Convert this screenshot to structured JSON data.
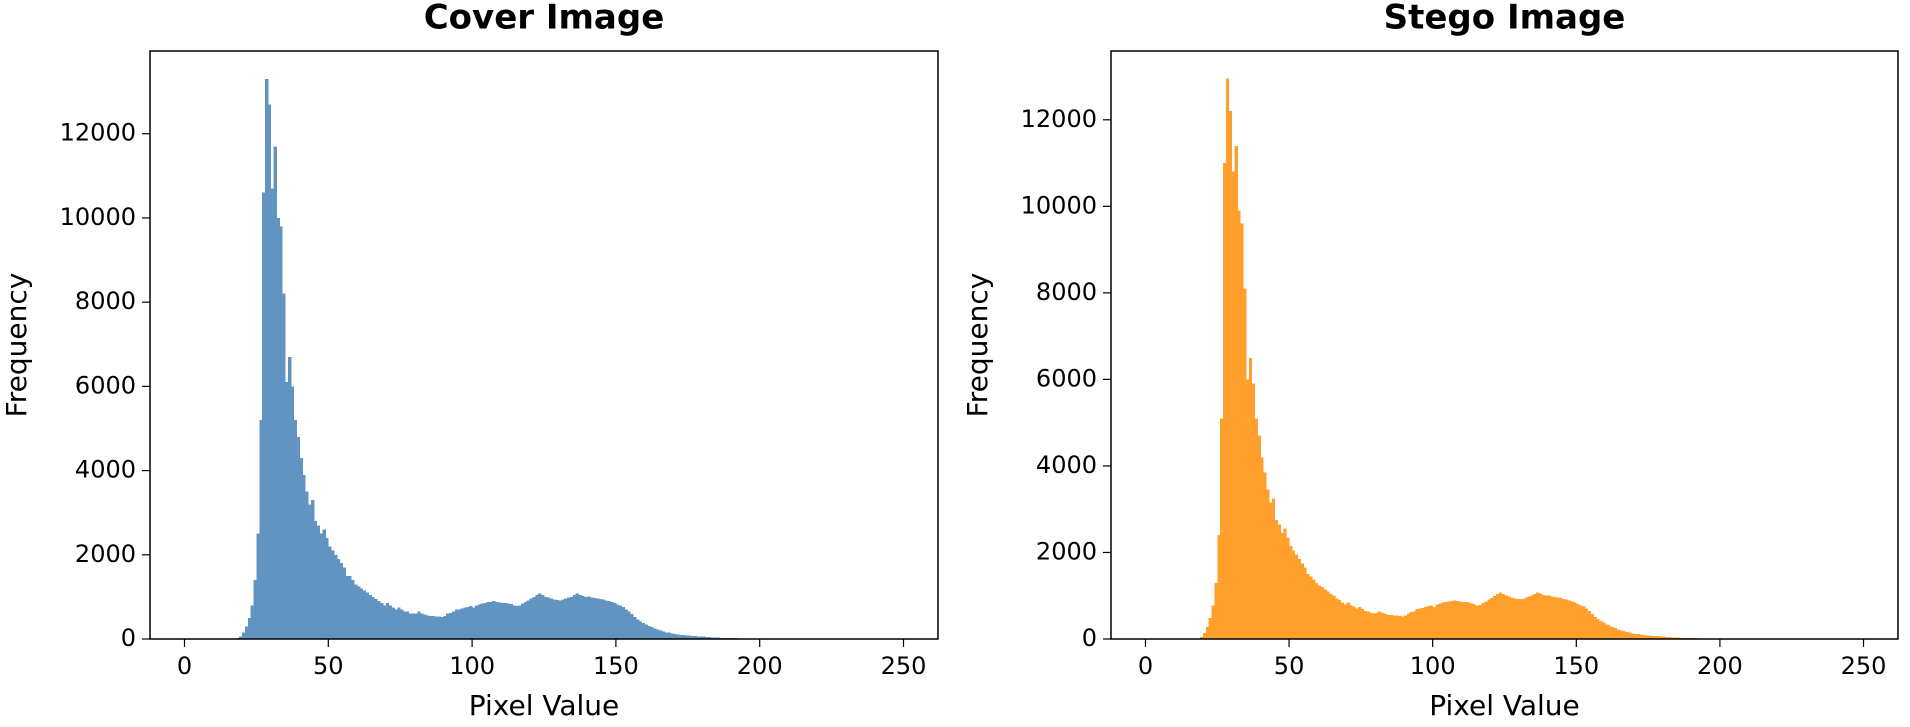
{
  "chart_data": [
    {
      "type": "histogram",
      "title": "Cover Image",
      "xlabel": "Pixel Value",
      "ylabel": "Frequency",
      "color": "#6194c0",
      "xlim": [
        -12,
        262
      ],
      "ylim": [
        0,
        13965
      ],
      "xticks": [
        0,
        50,
        100,
        150,
        200,
        250
      ],
      "yticks": [
        0,
        2000,
        4000,
        6000,
        8000,
        10000,
        12000
      ],
      "bins": [
        0,
        1,
        2,
        3,
        4,
        5,
        6,
        7,
        8,
        9,
        10,
        11,
        12,
        13,
        14,
        15,
        16,
        17,
        18,
        19,
        20,
        21,
        22,
        23,
        24,
        25,
        26,
        27,
        28,
        29,
        30,
        31,
        32,
        33,
        34,
        35,
        36,
        37,
        38,
        39,
        40,
        41,
        42,
        43,
        44,
        45,
        46,
        47,
        48,
        49,
        50,
        51,
        52,
        53,
        54,
        55,
        56,
        57,
        58,
        59,
        60,
        61,
        62,
        63,
        64,
        65,
        66,
        67,
        68,
        69,
        70,
        71,
        72,
        73,
        74,
        75,
        76,
        77,
        78,
        79,
        80,
        81,
        82,
        83,
        84,
        85,
        86,
        87,
        88,
        89,
        90,
        91,
        92,
        93,
        94,
        95,
        96,
        97,
        98,
        99,
        100,
        101,
        102,
        103,
        104,
        105,
        106,
        107,
        108,
        109,
        110,
        111,
        112,
        113,
        114,
        115,
        116,
        117,
        118,
        119,
        120,
        121,
        122,
        123,
        124,
        125,
        126,
        127,
        128,
        129,
        130,
        131,
        132,
        133,
        134,
        135,
        136,
        137,
        138,
        139,
        140,
        141,
        142,
        143,
        144,
        145,
        146,
        147,
        148,
        149,
        150,
        151,
        152,
        153,
        154,
        155,
        156,
        157,
        158,
        159,
        160,
        161,
        162,
        163,
        164,
        165,
        166,
        167,
        168,
        169,
        170,
        171,
        172,
        173,
        174,
        175,
        176,
        177,
        178,
        179,
        180,
        181,
        182,
        183,
        184,
        185,
        186,
        187,
        188,
        189,
        190,
        191,
        192,
        193,
        194,
        195,
        196,
        197,
        198,
        199,
        200,
        201,
        202,
        203,
        204,
        205,
        206,
        207,
        208,
        209,
        210,
        211,
        212,
        213,
        214,
        215,
        216,
        217,
        218,
        219,
        220,
        221,
        222,
        223,
        224,
        225,
        226,
        227,
        228,
        229,
        230,
        231,
        232,
        233,
        234,
        235,
        236,
        237,
        238,
        239,
        240,
        241,
        242,
        243,
        244,
        245,
        246,
        247,
        248,
        249,
        250,
        251,
        252,
        253,
        254,
        255,
        256
      ],
      "counts": [
        0,
        0,
        0,
        0,
        0,
        0,
        0,
        0,
        0,
        0,
        0,
        0,
        0,
        0,
        0,
        0,
        0,
        0,
        20,
        60,
        150,
        300,
        500,
        800,
        1400,
        2500,
        5200,
        10600,
        13300,
        12700,
        10700,
        11700,
        10000,
        9800,
        8200,
        6100,
        6700,
        6000,
        5200,
        4800,
        4300,
        3900,
        3500,
        3200,
        3300,
        2800,
        2700,
        2500,
        2600,
        2400,
        2200,
        2100,
        2000,
        1900,
        1800,
        1700,
        1500,
        1500,
        1400,
        1300,
        1250,
        1200,
        1150,
        1100,
        1050,
        1000,
        950,
        900,
        850,
        800,
        850,
        800,
        750,
        700,
        750,
        700,
        650,
        650,
        600,
        600,
        600,
        650,
        600,
        580,
        560,
        550,
        550,
        540,
        530,
        520,
        550,
        600,
        620,
        650,
        700,
        700,
        720,
        750,
        760,
        780,
        750,
        800,
        820,
        840,
        860,
        880,
        880,
        900,
        880,
        870,
        860,
        850,
        840,
        830,
        800,
        780,
        800,
        840,
        880,
        920,
        960,
        1000,
        1050,
        1080,
        1050,
        1000,
        980,
        960,
        940,
        930,
        920,
        940,
        960,
        990,
        1000,
        1050,
        1080,
        1050,
        1020,
        1000,
        1010,
        980,
        970,
        960,
        950,
        940,
        920,
        900,
        880,
        850,
        820,
        790,
        760,
        700,
        650,
        590,
        520,
        460,
        420,
        380,
        340,
        310,
        280,
        250,
        220,
        200,
        180,
        160,
        150,
        130,
        120,
        110,
        100,
        90,
        85,
        80,
        75,
        70,
        65,
        60,
        55,
        50,
        45,
        40,
        35,
        30,
        28,
        26,
        24,
        22,
        20,
        18,
        17,
        16,
        15,
        15,
        14,
        14,
        13,
        13,
        12,
        12,
        12,
        11,
        11,
        11,
        10,
        10,
        10,
        10,
        9,
        9,
        9,
        9,
        8,
        8,
        8,
        8,
        8,
        8,
        8,
        8,
        8,
        0,
        0,
        0,
        0,
        0,
        0,
        0,
        0,
        0,
        0,
        0,
        0,
        0,
        0,
        0,
        0,
        0,
        0,
        0,
        0,
        0,
        0,
        0,
        0,
        0,
        0,
        0,
        0,
        0,
        0,
        0,
        0,
        0
      ]
    },
    {
      "type": "histogram",
      "title": "Stego Image",
      "xlabel": "Pixel Value",
      "ylabel": "Frequency",
      "color": "#ff9f2c",
      "xlim": [
        -12,
        262
      ],
      "ylim": [
        0,
        13590
      ],
      "xticks": [
        0,
        50,
        100,
        150,
        200,
        250
      ],
      "yticks": [
        0,
        2000,
        4000,
        6000,
        8000,
        10000,
        12000
      ],
      "bins": [
        0,
        1,
        2,
        3,
        4,
        5,
        6,
        7,
        8,
        9,
        10,
        11,
        12,
        13,
        14,
        15,
        16,
        17,
        18,
        19,
        20,
        21,
        22,
        23,
        24,
        25,
        26,
        27,
        28,
        29,
        30,
        31,
        32,
        33,
        34,
        35,
        36,
        37,
        38,
        39,
        40,
        41,
        42,
        43,
        44,
        45,
        46,
        47,
        48,
        49,
        50,
        51,
        52,
        53,
        54,
        55,
        56,
        57,
        58,
        59,
        60,
        61,
        62,
        63,
        64,
        65,
        66,
        67,
        68,
        69,
        70,
        71,
        72,
        73,
        74,
        75,
        76,
        77,
        78,
        79,
        80,
        81,
        82,
        83,
        84,
        85,
        86,
        87,
        88,
        89,
        90,
        91,
        92,
        93,
        94,
        95,
        96,
        97,
        98,
        99,
        100,
        101,
        102,
        103,
        104,
        105,
        106,
        107,
        108,
        109,
        110,
        111,
        112,
        113,
        114,
        115,
        116,
        117,
        118,
        119,
        120,
        121,
        122,
        123,
        124,
        125,
        126,
        127,
        128,
        129,
        130,
        131,
        132,
        133,
        134,
        135,
        136,
        137,
        138,
        139,
        140,
        141,
        142,
        143,
        144,
        145,
        146,
        147,
        148,
        149,
        150,
        151,
        152,
        153,
        154,
        155,
        156,
        157,
        158,
        159,
        160,
        161,
        162,
        163,
        164,
        165,
        166,
        167,
        168,
        169,
        170,
        171,
        172,
        173,
        174,
        175,
        176,
        177,
        178,
        179,
        180,
        181,
        182,
        183,
        184,
        185,
        186,
        187,
        188,
        189,
        190,
        191,
        192,
        193,
        194,
        195,
        196,
        197,
        198,
        199,
        200,
        201,
        202,
        203,
        204,
        205,
        206,
        207,
        208,
        209,
        210,
        211,
        212,
        213,
        214,
        215,
        216,
        217,
        218,
        219,
        220,
        221,
        222,
        223,
        224,
        225,
        226,
        227,
        228,
        229,
        230,
        231,
        232,
        233,
        234,
        235,
        236,
        237,
        238,
        239,
        240,
        241,
        242,
        243,
        244,
        245,
        246,
        247,
        248,
        249,
        250,
        251,
        252,
        253,
        254,
        255,
        256
      ],
      "counts": [
        0,
        0,
        0,
        0,
        0,
        0,
        0,
        0,
        0,
        0,
        0,
        0,
        0,
        0,
        0,
        0,
        0,
        0,
        15,
        50,
        140,
        280,
        480,
        780,
        1300,
        2400,
        5100,
        11000,
        12950,
        12200,
        10800,
        11400,
        9900,
        9600,
        8100,
        6000,
        6500,
        5900,
        5100,
        4700,
        4200,
        3850,
        3450,
        3150,
        3250,
        2750,
        2650,
        2450,
        2550,
        2350,
        2150,
        2050,
        1950,
        1850,
        1750,
        1650,
        1500,
        1450,
        1380,
        1300,
        1240,
        1200,
        1140,
        1100,
        1040,
        1000,
        940,
        900,
        840,
        800,
        840,
        790,
        750,
        700,
        740,
        690,
        650,
        640,
        600,
        590,
        600,
        640,
        600,
        580,
        560,
        550,
        540,
        540,
        530,
        520,
        540,
        590,
        620,
        640,
        690,
        700,
        720,
        740,
        760,
        770,
        740,
        800,
        820,
        840,
        860,
        870,
        880,
        890,
        880,
        870,
        850,
        850,
        840,
        820,
        800,
        780,
        790,
        830,
        870,
        910,
        950,
        990,
        1040,
        1070,
        1040,
        1000,
        980,
        960,
        940,
        930,
        920,
        930,
        960,
        980,
        1000,
        1040,
        1070,
        1050,
        1020,
        1000,
        1000,
        980,
        970,
        960,
        950,
        930,
        910,
        890,
        870,
        840,
        810,
        780,
        750,
        700,
        650,
        580,
        510,
        460,
        420,
        380,
        340,
        310,
        280,
        250,
        220,
        200,
        180,
        160,
        150,
        130,
        120,
        110,
        100,
        90,
        85,
        80,
        75,
        70,
        65,
        60,
        55,
        50,
        45,
        40,
        35,
        30,
        28,
        26,
        24,
        22,
        20,
        18,
        17,
        16,
        15,
        15,
        14,
        14,
        13,
        13,
        12,
        12,
        12,
        11,
        11,
        11,
        10,
        10,
        10,
        10,
        9,
        9,
        9,
        9,
        8,
        8,
        8,
        8,
        8,
        8,
        8,
        8,
        8,
        0,
        0,
        0,
        0,
        0,
        0,
        0,
        0,
        0,
        0,
        0,
        0,
        0,
        0,
        0,
        0,
        0,
        0,
        0,
        0,
        0,
        0,
        0,
        0,
        0,
        0,
        0,
        0,
        0,
        0,
        0,
        0,
        0
      ]
    }
  ]
}
